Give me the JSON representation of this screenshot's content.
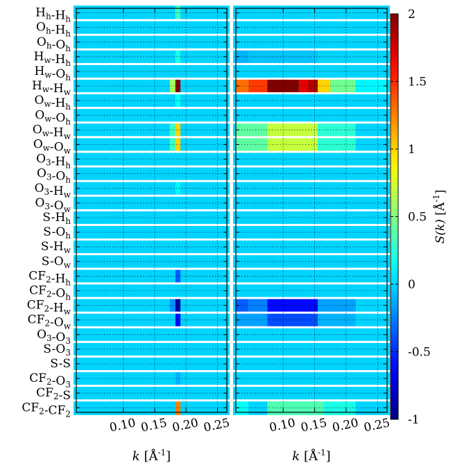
{
  "chart_data": {
    "type": "heatmap",
    "rows": [
      {
        "base": "H",
        "sub": "h",
        "base2": "H",
        "sub2": "h"
      },
      {
        "base": "O",
        "sub": "h",
        "base2": "H",
        "sub2": "h"
      },
      {
        "base": "O",
        "sub": "h",
        "base2": "O",
        "sub2": "h"
      },
      {
        "base": "H",
        "sub": "w",
        "base2": "H",
        "sub2": "h"
      },
      {
        "base": "H",
        "sub": "w",
        "base2": "O",
        "sub2": "h"
      },
      {
        "base": "H",
        "sub": "w",
        "base2": "H",
        "sub2": "w"
      },
      {
        "base": "O",
        "sub": "w",
        "base2": "H",
        "sub2": "h"
      },
      {
        "base": "O",
        "sub": "w",
        "base2": "O",
        "sub2": "h"
      },
      {
        "base": "O",
        "sub": "w",
        "base2": "H",
        "sub2": "w"
      },
      {
        "base": "O",
        "sub": "w",
        "base2": "O",
        "sub2": "w"
      },
      {
        "base": "O",
        "sub": "3",
        "base2": "H",
        "sub2": "h"
      },
      {
        "base": "O",
        "sub": "3",
        "base2": "O",
        "sub2": "h"
      },
      {
        "base": "O",
        "sub": "3",
        "base2": "H",
        "sub2": "w"
      },
      {
        "base": "O",
        "sub": "3",
        "base2": "O",
        "sub2": "w"
      },
      {
        "base": "S",
        "sub": "",
        "base2": "H",
        "sub2": "h"
      },
      {
        "base": "S",
        "sub": "",
        "base2": "O",
        "sub2": "h"
      },
      {
        "base": "S",
        "sub": "",
        "base2": "H",
        "sub2": "w"
      },
      {
        "base": "S",
        "sub": "",
        "base2": "O",
        "sub2": "w"
      },
      {
        "base": "CF",
        "sub": "2",
        "base2": "H",
        "sub2": "h"
      },
      {
        "base": "CF",
        "sub": "2",
        "base2": "O",
        "sub2": "h"
      },
      {
        "base": "CF",
        "sub": "2",
        "base2": "H",
        "sub2": "w"
      },
      {
        "base": "CF",
        "sub": "2",
        "base2": "O",
        "sub2": "w"
      },
      {
        "base": "O",
        "sub": "3",
        "base2": "O",
        "sub2": "3"
      },
      {
        "base": "S",
        "sub": "",
        "base2": "O",
        "sub2": "3"
      },
      {
        "base": "S",
        "sub": "",
        "base2": "S",
        "sub2": ""
      },
      {
        "base": "CF",
        "sub": "2",
        "base2": "O",
        "sub2": "3"
      },
      {
        "base": "CF",
        "sub": "2",
        "base2": "S",
        "sub2": ""
      },
      {
        "base": "CF",
        "sub": "2",
        "base2": "CF",
        "sub2": "2"
      }
    ],
    "panels": [
      {
        "xlim": [
          0.025,
          0.265
        ],
        "xticks": [
          "0.10",
          "0.15",
          "0.20",
          "0.25"
        ],
        "xtick_values": [
          0.1,
          0.15,
          0.2,
          0.25
        ],
        "xlabel_var": "k",
        "xlabel_unit": "[Å",
        "xlabel_exp": "-1",
        "xlabel_close": "]",
        "cells": [
          {
            "row": 0,
            "k0": 0.183,
            "k1": 0.191,
            "v": 0.3
          },
          {
            "row": 3,
            "k0": 0.183,
            "k1": 0.191,
            "v": 0.2
          },
          {
            "row": 5,
            "k0": 0.174,
            "k1": 0.183,
            "v": 0.6
          },
          {
            "row": 5,
            "k0": 0.183,
            "k1": 0.191,
            "v": 2.0
          },
          {
            "row": 6,
            "k0": 0.183,
            "k1": 0.191,
            "v": 0.15
          },
          {
            "row": 8,
            "k0": 0.174,
            "k1": 0.183,
            "v": 0.3
          },
          {
            "row": 8,
            "k0": 0.183,
            "k1": 0.191,
            "v": 1.0
          },
          {
            "row": 9,
            "k0": 0.174,
            "k1": 0.183,
            "v": 0.3
          },
          {
            "row": 9,
            "k0": 0.183,
            "k1": 0.191,
            "v": 1.0
          },
          {
            "row": 12,
            "k0": 0.183,
            "k1": 0.191,
            "v": 0.1
          },
          {
            "row": 18,
            "k0": 0.183,
            "k1": 0.191,
            "v": -0.35
          },
          {
            "row": 20,
            "k0": 0.174,
            "k1": 0.183,
            "v": -0.2
          },
          {
            "row": 20,
            "k0": 0.183,
            "k1": 0.191,
            "v": -0.9
          },
          {
            "row": 21,
            "k0": 0.183,
            "k1": 0.191,
            "v": -0.6
          },
          {
            "row": 25,
            "k0": 0.183,
            "k1": 0.191,
            "v": -0.1
          },
          {
            "row": 27,
            "k0": 0.183,
            "k1": 0.191,
            "v": 1.25
          }
        ]
      },
      {
        "xlim": [
          0.025,
          0.265
        ],
        "xticks": [
          "0.10",
          "0.15",
          "0.20",
          "0.25"
        ],
        "xtick_values": [
          0.1,
          0.15,
          0.2,
          0.25
        ],
        "xlabel_var": "k",
        "xlabel_unit": "[Å",
        "xlabel_exp": "-1",
        "xlabel_close": "]",
        "cells": [
          {
            "row": 3,
            "k0": 0.025,
            "k1": 0.045,
            "v": -0.1
          },
          {
            "row": 3,
            "k0": 0.045,
            "k1": 0.155,
            "v": -0.05
          },
          {
            "row": 5,
            "k0": 0.025,
            "k1": 0.045,
            "v": 1.3
          },
          {
            "row": 5,
            "k0": 0.045,
            "k1": 0.075,
            "v": 1.45
          },
          {
            "row": 5,
            "k0": 0.075,
            "k1": 0.125,
            "v": 2.0
          },
          {
            "row": 5,
            "k0": 0.125,
            "k1": 0.14,
            "v": 1.7
          },
          {
            "row": 5,
            "k0": 0.14,
            "k1": 0.155,
            "v": 1.85
          },
          {
            "row": 5,
            "k0": 0.155,
            "k1": 0.175,
            "v": 1.0
          },
          {
            "row": 5,
            "k0": 0.175,
            "k1": 0.215,
            "v": 0.45
          },
          {
            "row": 5,
            "k0": 0.215,
            "k1": 0.265,
            "v": 0.1
          },
          {
            "row": 8,
            "k0": 0.025,
            "k1": 0.075,
            "v": 0.4
          },
          {
            "row": 8,
            "k0": 0.075,
            "k1": 0.155,
            "v": 0.7
          },
          {
            "row": 8,
            "k0": 0.155,
            "k1": 0.215,
            "v": 0.25
          },
          {
            "row": 9,
            "k0": 0.025,
            "k1": 0.075,
            "v": 0.4
          },
          {
            "row": 9,
            "k0": 0.075,
            "k1": 0.155,
            "v": 0.7
          },
          {
            "row": 9,
            "k0": 0.155,
            "k1": 0.215,
            "v": 0.25
          },
          {
            "row": 20,
            "k0": 0.025,
            "k1": 0.045,
            "v": -0.35
          },
          {
            "row": 20,
            "k0": 0.045,
            "k1": 0.075,
            "v": -0.25
          },
          {
            "row": 20,
            "k0": 0.075,
            "k1": 0.155,
            "v": -0.6
          },
          {
            "row": 20,
            "k0": 0.155,
            "k1": 0.215,
            "v": -0.15
          },
          {
            "row": 21,
            "k0": 0.025,
            "k1": 0.075,
            "v": -0.15
          },
          {
            "row": 21,
            "k0": 0.075,
            "k1": 0.155,
            "v": -0.4
          },
          {
            "row": 21,
            "k0": 0.155,
            "k1": 0.215,
            "v": -0.1
          },
          {
            "row": 27,
            "k0": 0.025,
            "k1": 0.045,
            "v": 0.15
          },
          {
            "row": 27,
            "k0": 0.075,
            "k1": 0.165,
            "v": 0.35
          },
          {
            "row": 27,
            "k0": 0.165,
            "k1": 0.215,
            "v": 0.2
          }
        ]
      }
    ],
    "colorbar": {
      "min": -1,
      "max": 2,
      "ticks": [
        "-1",
        "-0.5",
        "0",
        "0.5",
        "1",
        "1.5",
        "2"
      ],
      "tick_values": [
        -1,
        -0.5,
        0,
        0.5,
        1,
        1.5,
        2
      ],
      "label_var": "S(k)",
      "label_unit": "[Å",
      "label_exp": "-1",
      "label_close": "]",
      "colormap": "jet"
    },
    "background_value": 0,
    "grid": "dotted",
    "row_separators": "white"
  }
}
